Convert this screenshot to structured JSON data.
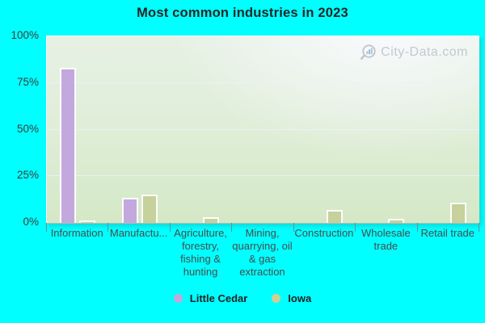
{
  "title": "Most common industries in 2023",
  "watermark": {
    "text": "City-Data.com",
    "icon": "magnifier-bar-chart-icon"
  },
  "colors": {
    "background": "#00ffff",
    "little_cedar": "#c3a8dd",
    "iowa": "#c6d19b",
    "legend_iowa_dot": "#cdd094",
    "plot_gradient_top": "#f2f6f7",
    "plot_gradient_bottom": "#d4e8c6",
    "axis_text": "#3b3b3b",
    "category_text": "#4a4a4a"
  },
  "legend": {
    "items": [
      {
        "label": "Little Cedar",
        "color": "#c3a8dd"
      },
      {
        "label": "Iowa",
        "color": "#cdd094"
      }
    ]
  },
  "chart_data": {
    "type": "bar",
    "title": "Most common industries in 2023",
    "categories": [
      "Information",
      "Manufactu...",
      "Agriculture, forestry, fishing & hunting",
      "Mining, quarrying, oil & gas extraction",
      "Construction",
      "Wholesale trade",
      "Retail trade"
    ],
    "series": [
      {
        "name": "Little Cedar",
        "color": "#c3a8dd",
        "values": [
          83,
          13.5,
          0,
          0,
          0,
          0,
          0
        ]
      },
      {
        "name": "Iowa",
        "color": "#c6d19b",
        "values": [
          1,
          15,
          3,
          0,
          7,
          2,
          11
        ]
      }
    ],
    "xlabel": "",
    "ylabel": "",
    "ylim": [
      0,
      100
    ],
    "yticks": [
      0,
      25,
      50,
      75,
      100
    ],
    "ytick_format": "percent",
    "grid": "horizontal",
    "legend_position": "bottom",
    "bar_outline": "#ffffff"
  }
}
